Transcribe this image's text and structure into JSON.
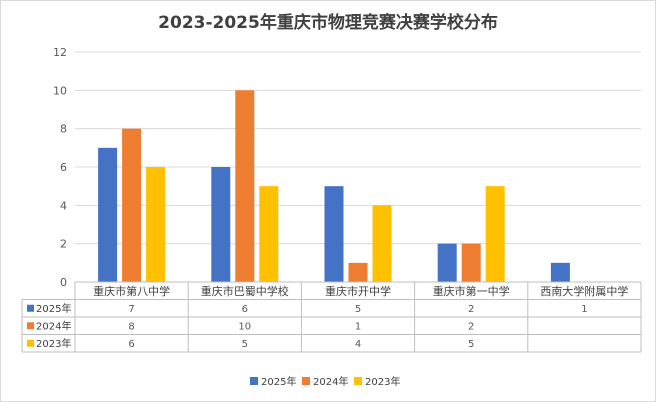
{
  "chart_data": {
    "type": "bar",
    "title": "2023-2025年重庆市物理竞赛决赛学校分布",
    "categories": [
      "重庆市第八中学",
      "重庆市巴蜀中学校",
      "重庆市开中学",
      "重庆市第一中学",
      "西南大学附属中学"
    ],
    "series": [
      {
        "name": "2025年",
        "color": "#4472c4",
        "values": [
          7,
          6,
          5,
          2,
          1
        ]
      },
      {
        "name": "2024年",
        "color": "#ed7d31",
        "values": [
          8,
          10,
          1,
          2,
          null
        ]
      },
      {
        "name": "2023年",
        "color": "#ffc000",
        "values": [
          6,
          5,
          4,
          5,
          null
        ]
      }
    ],
    "ylim": [
      0,
      12
    ],
    "yticks": [
      0,
      2,
      4,
      6,
      8,
      10,
      12
    ],
    "grid": true,
    "legend": "bottom",
    "data_table": true
  }
}
